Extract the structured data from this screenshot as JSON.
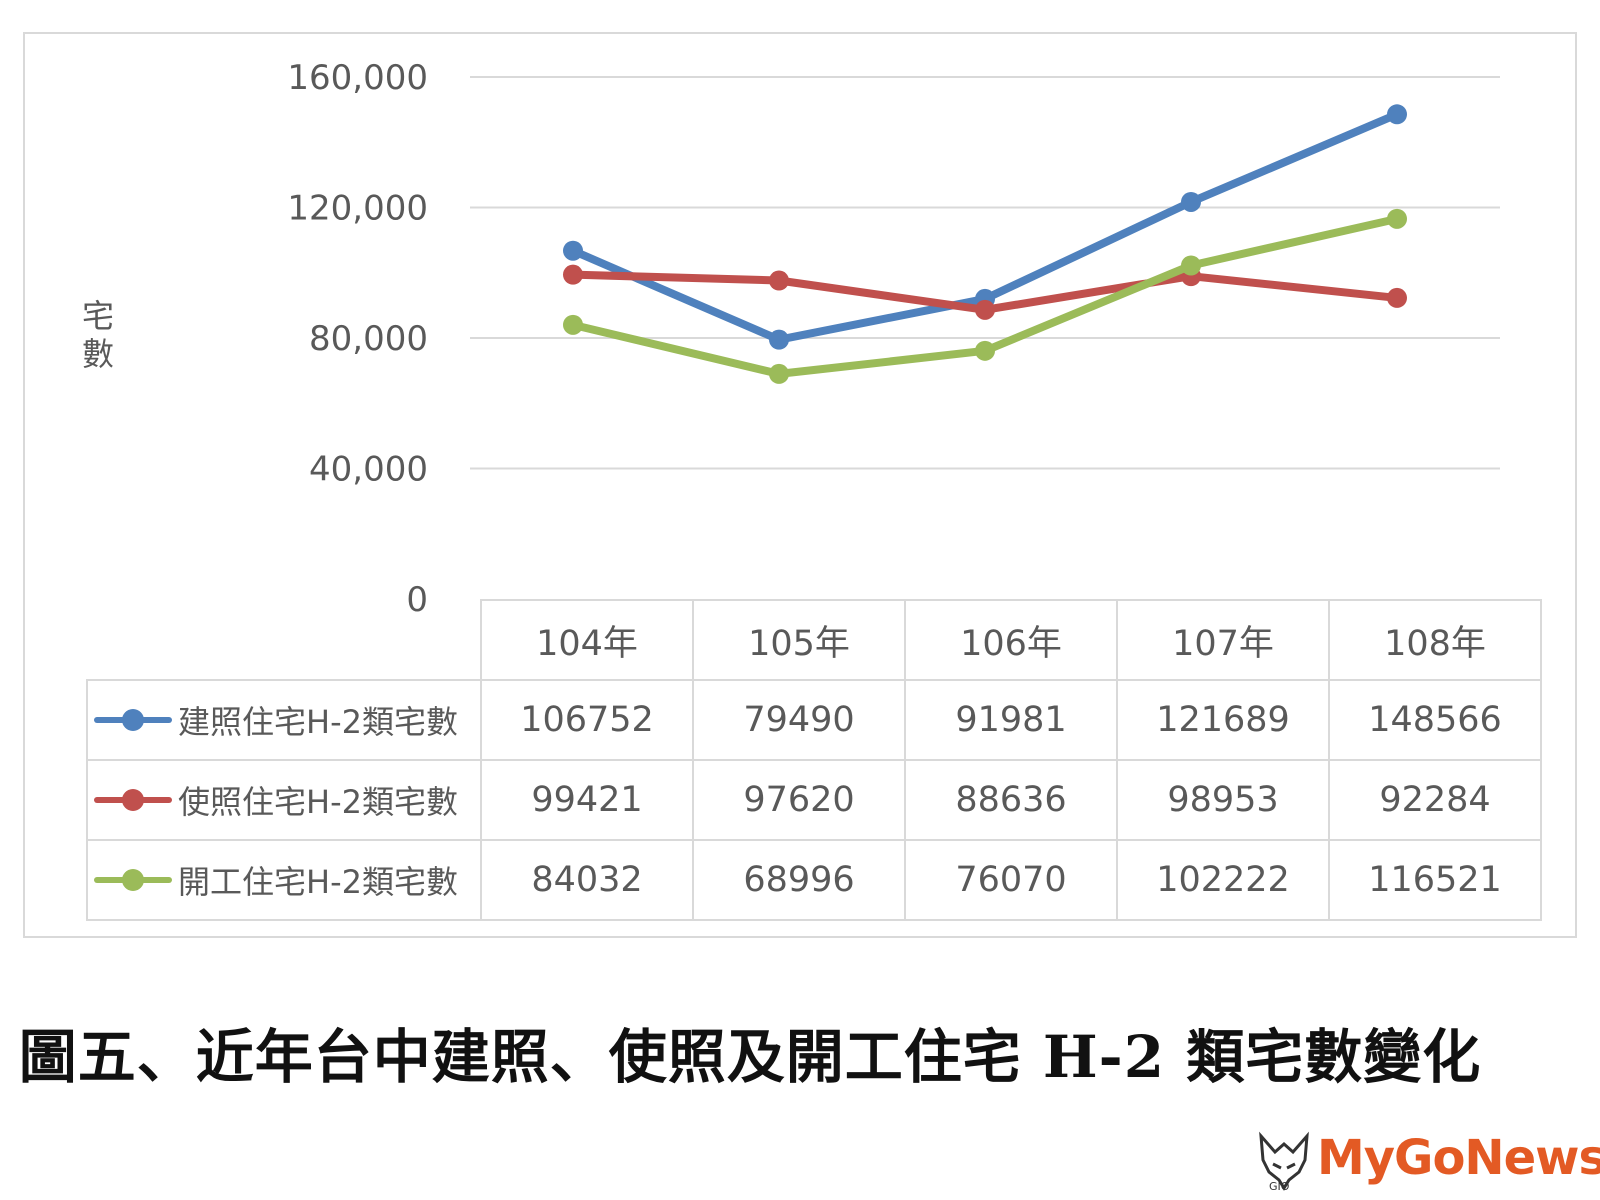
{
  "chart_data": {
    "type": "line",
    "title": "",
    "ylabel": "宅數",
    "ylim": [
      0,
      160000
    ],
    "yticks": [
      "0",
      "40,000",
      "80,000",
      "120,000",
      "160,000"
    ],
    "ytick_values": [
      0,
      40000,
      80000,
      120000,
      160000
    ],
    "categories": [
      "104年",
      "105年",
      "106年",
      "107年",
      "108年"
    ],
    "grid": true,
    "legend": "data-table",
    "series": [
      {
        "name": "建照住宅H-2類宅數",
        "color": "#4f81bd",
        "values": [
          106752,
          79490,
          91981,
          121689,
          148566
        ]
      },
      {
        "name": "使照住宅H-2類宅數",
        "color": "#c0504d",
        "values": [
          99421,
          97620,
          88636,
          98953,
          92284
        ]
      },
      {
        "name": "開工住宅H-2類宅數",
        "color": "#9bbb59",
        "values": [
          84032,
          68996,
          76070,
          102222,
          116521
        ]
      }
    ]
  },
  "caption": "圖五、近年台中建照、使照及開工住宅 H-2 類宅數變化",
  "logo": {
    "text": "MyGoNews",
    "color": "#e35a24"
  }
}
